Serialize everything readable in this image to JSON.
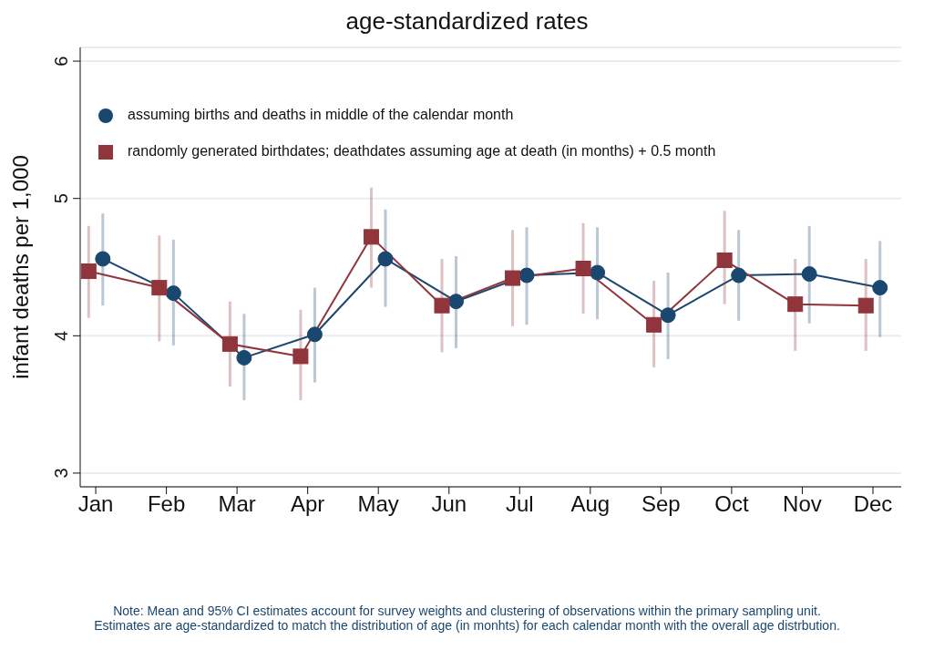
{
  "chart_data": {
    "type": "line",
    "title": "age-standardized rates",
    "ylabel": "infant deaths per 1,000",
    "categories": [
      "Jan",
      "Feb",
      "Mar",
      "Apr",
      "May",
      "Jun",
      "Jul",
      "Aug",
      "Sep",
      "Oct",
      "Nov",
      "Dec"
    ],
    "series": [
      {
        "name": "assuming births and deaths in middle of the calendar month",
        "color": "#1a476f",
        "marker": "circle",
        "values": [
          4.56,
          4.31,
          3.84,
          4.01,
          4.56,
          4.25,
          4.44,
          4.46,
          4.15,
          4.44,
          4.45,
          4.35
        ],
        "errors": [
          [
            4.22,
            4.89
          ],
          [
            3.93,
            4.7
          ],
          [
            3.53,
            4.16
          ],
          [
            3.66,
            4.35
          ],
          [
            4.21,
            4.92
          ],
          [
            3.91,
            4.58
          ],
          [
            4.08,
            4.79
          ],
          [
            4.12,
            4.79
          ],
          [
            3.83,
            4.46
          ],
          [
            4.11,
            4.77
          ],
          [
            4.09,
            4.8
          ],
          [
            3.99,
            4.69
          ]
        ]
      },
      {
        "name": "randomly generated birthdates; deathdates assuming age at death (in months) + 0.5 month",
        "color": "#90353b",
        "marker": "square",
        "values": [
          4.47,
          4.35,
          3.94,
          3.85,
          4.72,
          4.22,
          4.42,
          4.49,
          4.08,
          4.55,
          4.23,
          4.22
        ],
        "errors": [
          [
            4.13,
            4.8
          ],
          [
            3.96,
            4.73
          ],
          [
            3.63,
            4.25
          ],
          [
            3.53,
            4.19
          ],
          [
            4.35,
            5.08
          ],
          [
            3.88,
            4.56
          ],
          [
            4.07,
            4.77
          ],
          [
            4.16,
            4.82
          ],
          [
            3.77,
            4.4
          ],
          [
            4.23,
            4.91
          ],
          [
            3.89,
            4.56
          ],
          [
            3.89,
            4.56
          ]
        ]
      }
    ],
    "ylim": [
      2.9,
      6.1
    ],
    "yticks": [
      3,
      4,
      5,
      6
    ],
    "grid": "y",
    "legend": "top left",
    "line_style": "solid",
    "annotations": [
      "Note: Mean and 95% CI estimates account for survey weights and clustering of observations within the primary sampling unit.",
      "Estimates are age-standardized to match the distribution of age (in monhts) for each calendar month with the overall age distrbution."
    ]
  }
}
